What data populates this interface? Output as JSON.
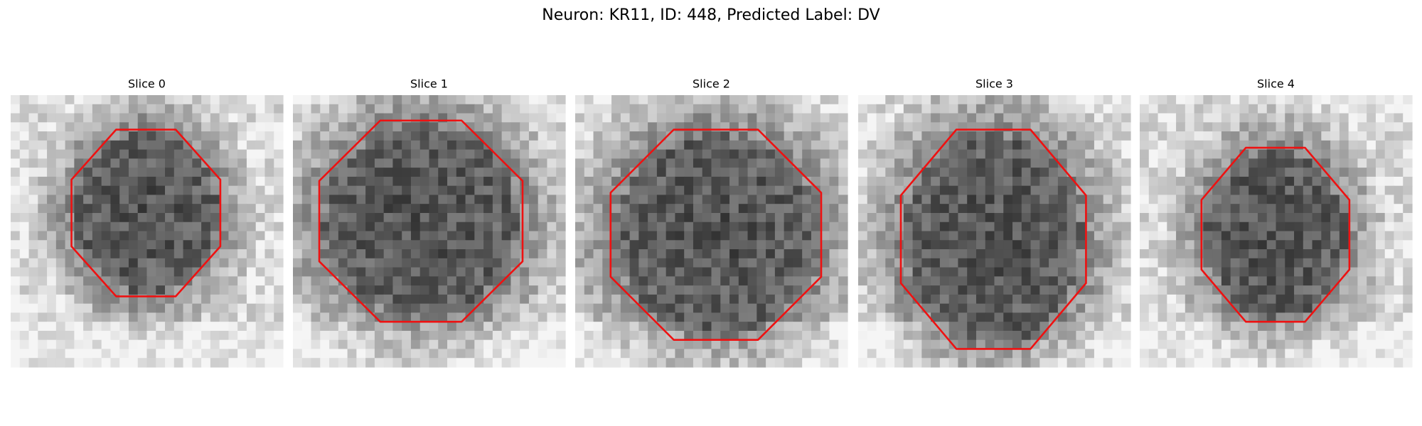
{
  "title": "Neuron: KR11, ID: 448, Predicted Label: DV",
  "panels": [
    {
      "title": "Slice 0"
    },
    {
      "title": "Slice 1"
    },
    {
      "title": "Slice 2"
    },
    {
      "title": "Slice 3"
    },
    {
      "title": "Slice 4"
    }
  ]
}
